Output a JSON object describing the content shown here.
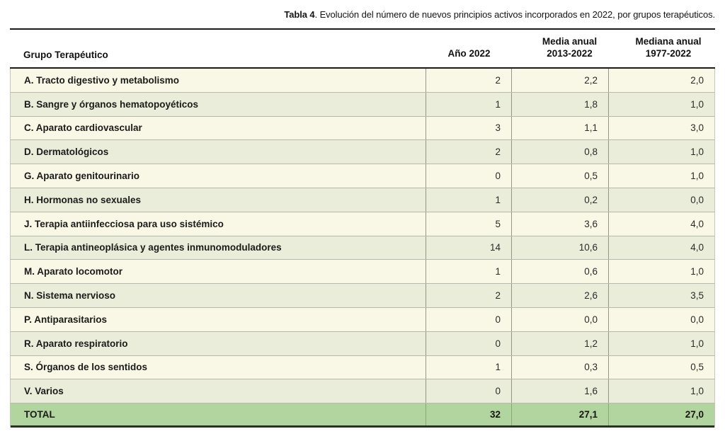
{
  "caption": {
    "bold": "Tabla 4",
    "rest": ". Evolución del número de nuevos principios activos incorporados en 2022, por grupos terapéuticos."
  },
  "columns": {
    "grupo": "Grupo Terapéutico",
    "ano": "Año 2022",
    "media": {
      "line1": "Media anual",
      "line2": "2013-2022"
    },
    "mediana": {
      "line1": "Mediana anual",
      "line2": "1977-2022"
    }
  },
  "rows": [
    {
      "label": "A. Tracto digestivo y metabolismo",
      "ano": "2",
      "media": "2,2",
      "mediana": "2,0"
    },
    {
      "label": "B. Sangre y órganos hematopoyéticos",
      "ano": "1",
      "media": "1,8",
      "mediana": "1,0"
    },
    {
      "label": "C. Aparato cardiovascular",
      "ano": "3",
      "media": "1,1",
      "mediana": "3,0"
    },
    {
      "label": "D. Dermatológicos",
      "ano": "2",
      "media": "0,8",
      "mediana": "1,0"
    },
    {
      "label": "G. Aparato genitourinario",
      "ano": "0",
      "media": "0,5",
      "mediana": "1,0"
    },
    {
      "label": "H. Hormonas no sexuales",
      "ano": "1",
      "media": "0,2",
      "mediana": "0,0"
    },
    {
      "label": "J. Terapia antiinfecciosa para uso sistémico",
      "ano": "5",
      "media": "3,6",
      "mediana": "4,0"
    },
    {
      "label": "L. Terapia antineoplásica y agentes inmunomoduladores",
      "ano": "14",
      "media": "10,6",
      "mediana": "4,0"
    },
    {
      "label": "M. Aparato locomotor",
      "ano": "1",
      "media": "0,6",
      "mediana": "1,0"
    },
    {
      "label": "N. Sistema nervioso",
      "ano": "2",
      "media": "2,6",
      "mediana": "3,5"
    },
    {
      "label": "P. Antiparasitarios",
      "ano": "0",
      "media": "0,0",
      "mediana": "0,0"
    },
    {
      "label": "R. Aparato respiratorio",
      "ano": "0",
      "media": "1,2",
      "mediana": "1,0"
    },
    {
      "label": "S. Órganos de los sentidos",
      "ano": "1",
      "media": "0,3",
      "mediana": "0,5"
    },
    {
      "label": "V. Varios",
      "ano": "0",
      "media": "1,6",
      "mediana": "1,0"
    }
  ],
  "total": {
    "label": "TOTAL",
    "ano": "32",
    "media": "27,1",
    "mediana": "27,0"
  },
  "colors": {
    "row_cream": "#f9f7e5",
    "row_green": "#e9edda",
    "total_green": "#b2d49e",
    "rule_black": "#1a1a1a",
    "bottom_border": "#29311f"
  }
}
